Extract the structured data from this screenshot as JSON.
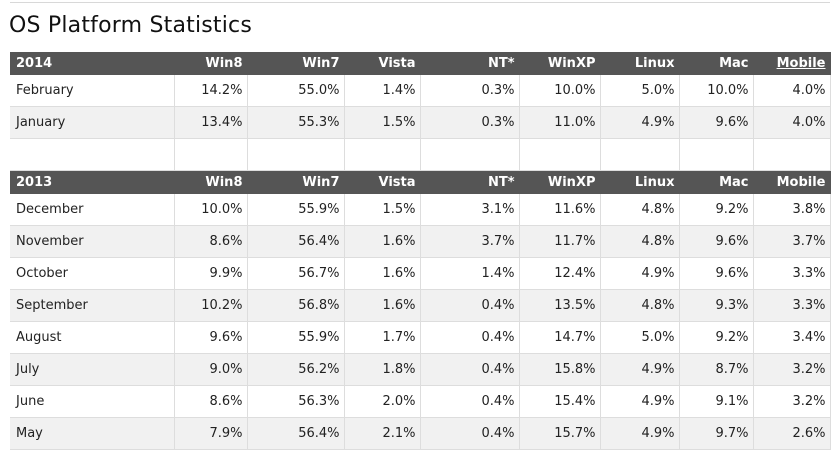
{
  "page": {
    "title": "OS Platform Statistics"
  },
  "columns": [
    "Win8",
    "Win7",
    "Vista",
    "NT*",
    "WinXP",
    "Linux",
    "Mac",
    "Mobile"
  ],
  "table2014": {
    "year": "2014",
    "rows": [
      {
        "month": "February",
        "values": [
          "14.2%",
          "55.0%",
          "1.4%",
          "0.3%",
          "10.0%",
          "5.0%",
          "10.0%",
          "4.0%"
        ]
      },
      {
        "month": "January",
        "values": [
          "13.4%",
          "55.3%",
          "1.5%",
          "0.3%",
          "11.0%",
          "4.9%",
          "9.6%",
          "4.0%"
        ]
      }
    ]
  },
  "table2013": {
    "year": "2013",
    "rows": [
      {
        "month": "December",
        "values": [
          "10.0%",
          "55.9%",
          "1.5%",
          "3.1%",
          "11.6%",
          "4.8%",
          "9.2%",
          "3.8%"
        ]
      },
      {
        "month": "November",
        "values": [
          "8.6%",
          "56.4%",
          "1.6%",
          "3.7%",
          "11.7%",
          "4.8%",
          "9.6%",
          "3.7%"
        ]
      },
      {
        "month": "October",
        "values": [
          "9.9%",
          "56.7%",
          "1.6%",
          "1.4%",
          "12.4%",
          "4.9%",
          "9.6%",
          "3.3%"
        ]
      },
      {
        "month": "September",
        "values": [
          "10.2%",
          "56.8%",
          "1.6%",
          "0.4%",
          "13.5%",
          "4.8%",
          "9.3%",
          "3.3%"
        ]
      },
      {
        "month": "August",
        "values": [
          "9.6%",
          "55.9%",
          "1.7%",
          "0.4%",
          "14.7%",
          "5.0%",
          "9.2%",
          "3.4%"
        ]
      },
      {
        "month": "July",
        "values": [
          "9.0%",
          "56.2%",
          "1.8%",
          "0.4%",
          "15.8%",
          "4.9%",
          "8.7%",
          "3.2%"
        ]
      },
      {
        "month": "June",
        "values": [
          "8.6%",
          "56.3%",
          "2.0%",
          "0.4%",
          "15.4%",
          "4.9%",
          "9.1%",
          "3.2%"
        ]
      },
      {
        "month": "May",
        "values": [
          "7.9%",
          "56.4%",
          "2.1%",
          "0.4%",
          "15.7%",
          "4.9%",
          "9.7%",
          "2.6%"
        ]
      }
    ]
  }
}
